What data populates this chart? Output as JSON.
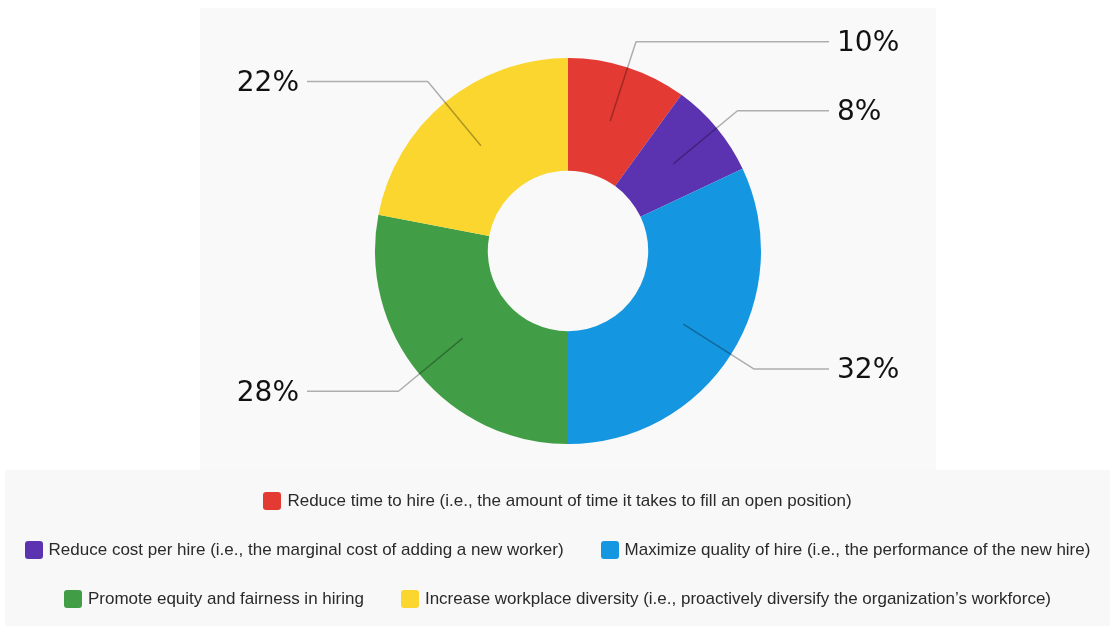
{
  "chart_data": {
    "type": "donut",
    "categories": [
      "Reduce time to hire (i.e., the amount of time it takes to fill an open position)",
      "Reduce cost per hire (i.e., the marginal cost of adding a new worker)",
      "Maximize quality of hire (i.e., the performance of the new hire)",
      "Promote equity and fairness in hiring",
      "Increase workplace diversity (i.e., proactively diversify the organization’s workforce)"
    ],
    "values": [
      10,
      8,
      32,
      28,
      22
    ],
    "colors": [
      "#e33a33",
      "#5b33b0",
      "#1596e0",
      "#429e46",
      "#fad62e"
    ],
    "value_labels": [
      "10%",
      "8%",
      "32%",
      "28%",
      "22%"
    ],
    "legend": "bottom"
  }
}
